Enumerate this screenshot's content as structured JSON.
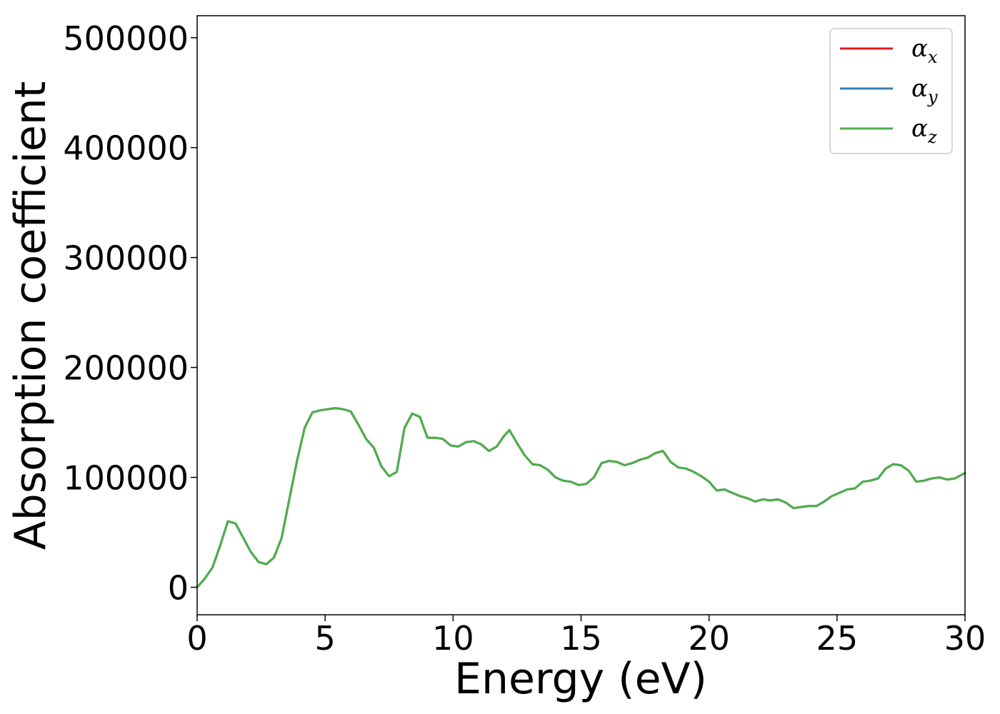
{
  "chart_data": {
    "type": "line",
    "title": "",
    "xlabel": "Energy (eV)",
    "ylabel": "Absorption coefficient",
    "xlim": [
      0,
      30
    ],
    "ylim": [
      -25000,
      520000
    ],
    "xticks": [
      0,
      5,
      10,
      15,
      20,
      25,
      30
    ],
    "yticks": [
      0,
      100000,
      200000,
      300000,
      400000,
      500000
    ],
    "grid": false,
    "legend": "top-right",
    "x": [
      0,
      0.3,
      0.6,
      0.9,
      1.2,
      1.5,
      1.8,
      2.1,
      2.4,
      2.7,
      3.0,
      3.3,
      3.6,
      3.9,
      4.2,
      4.5,
      4.8,
      5.1,
      5.4,
      5.7,
      6.0,
      6.3,
      6.6,
      6.9,
      7.2,
      7.5,
      7.8,
      8.1,
      8.4,
      8.7,
      9.0,
      9.3,
      9.6,
      9.9,
      10.2,
      10.5,
      10.8,
      11.1,
      11.4,
      11.7,
      12.0,
      12.2,
      12.5,
      12.8,
      13.1,
      13.4,
      13.7,
      14.0,
      14.3,
      14.6,
      14.9,
      15.2,
      15.5,
      15.8,
      16.1,
      16.4,
      16.7,
      17.0,
      17.3,
      17.6,
      17.9,
      18.2,
      18.5,
      18.8,
      19.1,
      19.4,
      19.7,
      20.0,
      20.3,
      20.6,
      20.9,
      21.2,
      21.5,
      21.8,
      22.1,
      22.4,
      22.7,
      23.0,
      23.3,
      23.6,
      23.9,
      24.2,
      24.5,
      24.8,
      25.1,
      25.4,
      25.7,
      26.0,
      26.3,
      26.6,
      26.9,
      27.2,
      27.5,
      27.8,
      28.1,
      28.4,
      28.7,
      29.0,
      29.3,
      29.6,
      30.0
    ],
    "series": [
      {
        "name": "x",
        "color": "#e41a1c",
        "values": [
          0,
          8000,
          18000,
          38000,
          60000,
          58000,
          45000,
          32000,
          23000,
          21000,
          27000,
          45000,
          80000,
          115000,
          145000,
          159000,
          161000,
          162000,
          163000,
          162000,
          160000,
          148000,
          135000,
          127000,
          110000,
          101000,
          105000,
          145000,
          158000,
          155000,
          136000,
          136000,
          135000,
          129000,
          128000,
          132000,
          133000,
          130000,
          124000,
          128000,
          138000,
          143000,
          131000,
          120000,
          112000,
          111000,
          107000,
          100000,
          97000,
          96000,
          93000,
          94000,
          100000,
          113000,
          115000,
          114000,
          111000,
          113000,
          116000,
          118000,
          122000,
          124000,
          114000,
          109000,
          108000,
          105000,
          101000,
          96000,
          88000,
          89000,
          86000,
          83000,
          81000,
          78000,
          80000,
          79000,
          80000,
          77000,
          72000,
          73000,
          74000,
          74000,
          78000,
          83000,
          86000,
          89000,
          90000,
          96000,
          97000,
          99000,
          108000,
          112000,
          111000,
          106000,
          96000,
          97000,
          99000,
          100000,
          98000,
          99000,
          104000
        ]
      },
      {
        "name": "y",
        "color": "#377eb8",
        "values": [
          0,
          8000,
          18000,
          38000,
          60000,
          58000,
          45000,
          32000,
          23000,
          21000,
          27000,
          45000,
          80000,
          115000,
          145000,
          159000,
          161000,
          162000,
          163000,
          162000,
          160000,
          148000,
          135000,
          127000,
          110000,
          101000,
          105000,
          145000,
          158000,
          155000,
          136000,
          136000,
          135000,
          129000,
          128000,
          132000,
          133000,
          130000,
          124000,
          128000,
          138000,
          143000,
          131000,
          120000,
          112000,
          111000,
          107000,
          100000,
          97000,
          96000,
          93000,
          94000,
          100000,
          113000,
          115000,
          114000,
          111000,
          113000,
          116000,
          118000,
          122000,
          124000,
          114000,
          109000,
          108000,
          105000,
          101000,
          96000,
          88000,
          89000,
          86000,
          83000,
          81000,
          78000,
          80000,
          79000,
          80000,
          77000,
          72000,
          73000,
          74000,
          74000,
          78000,
          83000,
          86000,
          89000,
          90000,
          96000,
          97000,
          99000,
          108000,
          112000,
          111000,
          106000,
          96000,
          97000,
          99000,
          100000,
          98000,
          99000,
          104000
        ]
      },
      {
        "name": "z",
        "color": "#4daf4a",
        "values": [
          0,
          8000,
          18000,
          38000,
          60000,
          58000,
          45000,
          32000,
          23000,
          21000,
          27000,
          45000,
          80000,
          115000,
          145000,
          159000,
          161000,
          162000,
          163000,
          162000,
          160000,
          148000,
          135000,
          127000,
          110000,
          101000,
          105000,
          145000,
          158000,
          155000,
          136000,
          136000,
          135000,
          129000,
          128000,
          132000,
          133000,
          130000,
          124000,
          128000,
          138000,
          143000,
          131000,
          120000,
          112000,
          111000,
          107000,
          100000,
          97000,
          96000,
          93000,
          94000,
          100000,
          113000,
          115000,
          114000,
          111000,
          113000,
          116000,
          118000,
          122000,
          124000,
          114000,
          109000,
          108000,
          105000,
          101000,
          96000,
          88000,
          89000,
          86000,
          83000,
          81000,
          78000,
          80000,
          79000,
          80000,
          77000,
          72000,
          73000,
          74000,
          74000,
          78000,
          83000,
          86000,
          89000,
          90000,
          96000,
          97000,
          99000,
          108000,
          112000,
          111000,
          106000,
          96000,
          97000,
          99000,
          100000,
          98000,
          99000,
          104000
        ]
      }
    ]
  },
  "legend": {
    "symbol": "α",
    "entries": [
      "x",
      "y",
      "z"
    ]
  }
}
